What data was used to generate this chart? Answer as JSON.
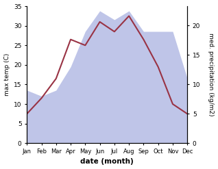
{
  "months": [
    "Jan",
    "Feb",
    "Mar",
    "Apr",
    "May",
    "Jun",
    "Jul",
    "Aug",
    "Sep",
    "Oct",
    "Nov",
    "Dec"
  ],
  "temperature": [
    7.5,
    11.5,
    16.5,
    26.5,
    25.0,
    31.0,
    28.5,
    32.5,
    26.5,
    19.5,
    10.0,
    7.5
  ],
  "precipitation": [
    9.0,
    8.0,
    9.0,
    13.0,
    19.0,
    22.5,
    21.0,
    22.5,
    19.0,
    19.0,
    19.0,
    11.0
  ],
  "temp_color": "#993344",
  "precip_fill_color": "#bfc5e8",
  "temp_ylim": [
    0,
    35
  ],
  "precip_ylim": [
    0,
    23.3
  ],
  "temp_yticks": [
    0,
    5,
    10,
    15,
    20,
    25,
    30,
    35
  ],
  "precip_yticks": [
    0,
    5,
    10,
    15,
    20
  ],
  "xlabel": "date (month)",
  "ylabel_left": "max temp (C)",
  "ylabel_right": "med. precipitation (kg/m2)",
  "bg_color": "#ffffff"
}
